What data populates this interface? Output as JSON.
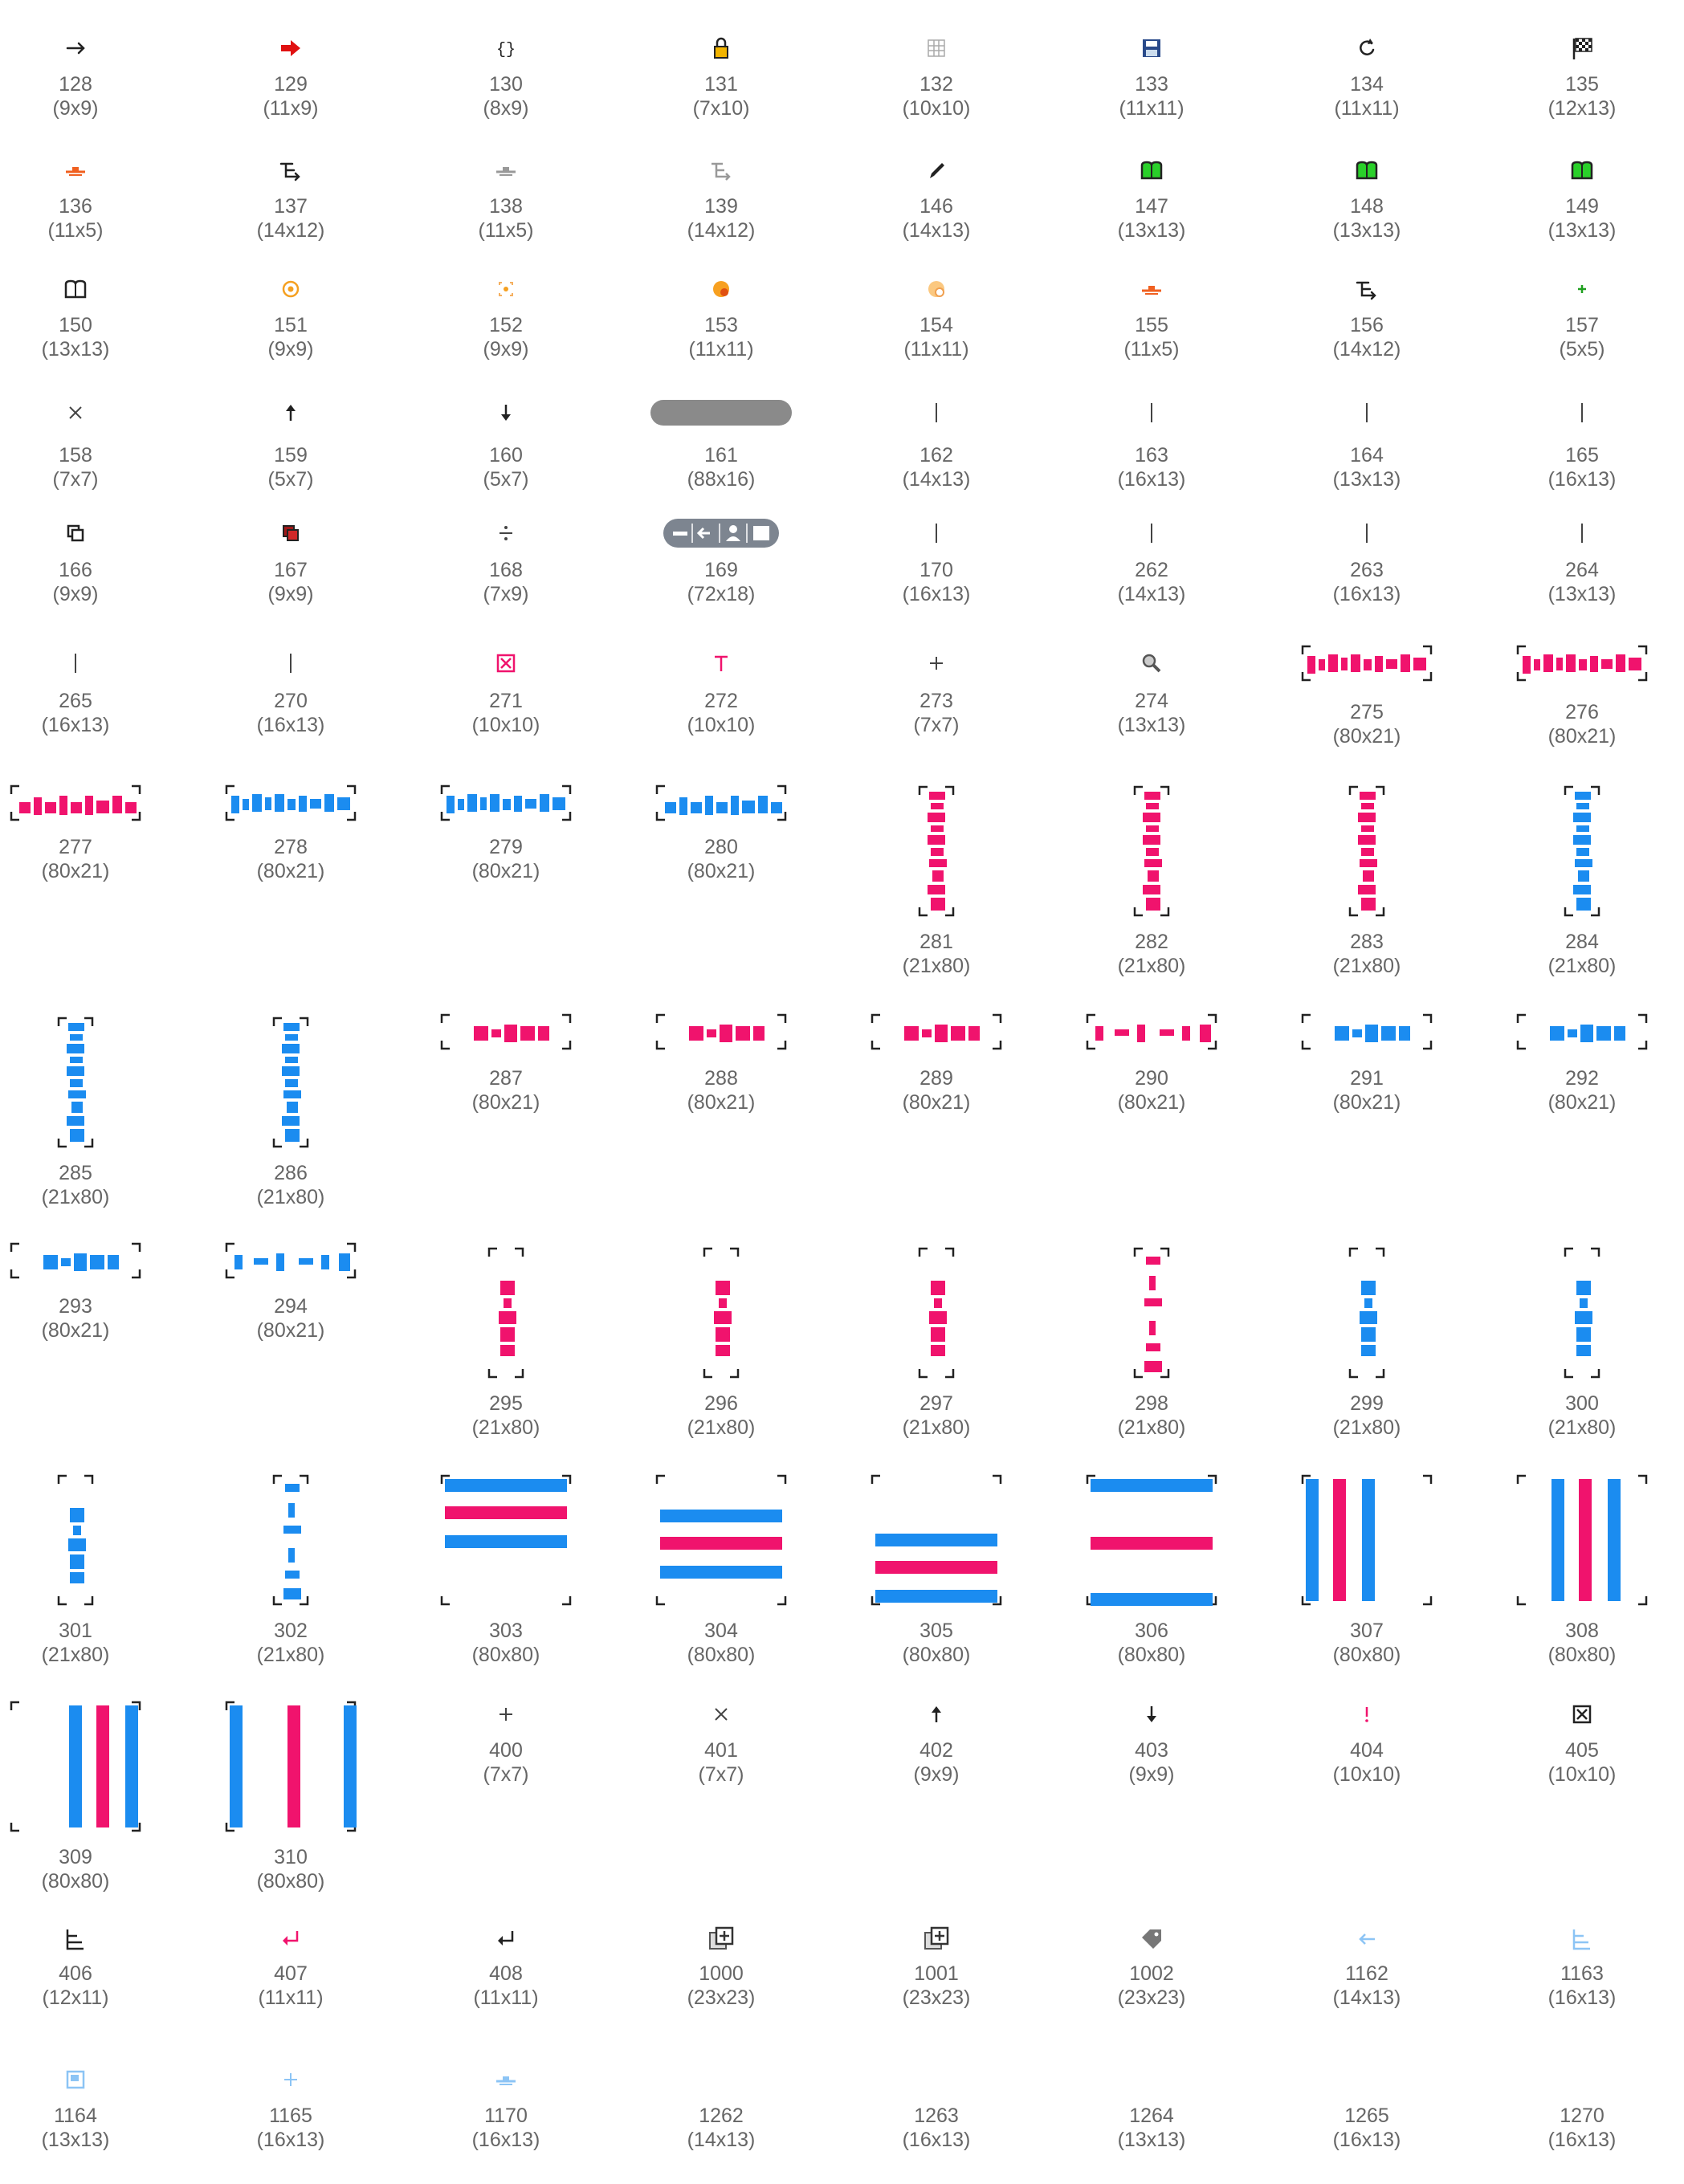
{
  "colors": {
    "pink": "#f0136d",
    "blue": "#1b8cf0",
    "label": "#666666",
    "dark": "#222222"
  },
  "cells": [
    {
      "id": "128",
      "size": "(9x9)",
      "icon": "arrow-right-icon"
    },
    {
      "id": "129",
      "size": "(11x9)",
      "icon": "red-arrow-right-icon"
    },
    {
      "id": "130",
      "size": "(8x9)",
      "icon": "braces-icon"
    },
    {
      "id": "131",
      "size": "(7x10)",
      "icon": "padlock-icon"
    },
    {
      "id": "132",
      "size": "(10x10)",
      "icon": "grid-icon"
    },
    {
      "id": "133",
      "size": "(11x11)",
      "icon": "floppy-disk-icon"
    },
    {
      "id": "134",
      "size": "(11x11)",
      "icon": "refresh-icon"
    },
    {
      "id": "135",
      "size": "(12x13)",
      "icon": "checkered-flag-icon"
    },
    {
      "id": "136",
      "size": "(11x5)",
      "icon": "orange-anchor-icon"
    },
    {
      "id": "137",
      "size": "(14x12)",
      "icon": "route-arrow-icon"
    },
    {
      "id": "138",
      "size": "(11x5)",
      "icon": "gray-anchor-icon"
    },
    {
      "id": "139",
      "size": "(14x12)",
      "icon": "gray-route-arrow-icon"
    },
    {
      "id": "146",
      "size": "(14x13)",
      "icon": "pencil-icon"
    },
    {
      "id": "147",
      "size": "(13x13)",
      "icon": "green-book-icon"
    },
    {
      "id": "148",
      "size": "(13x13)",
      "icon": "green-book-icon"
    },
    {
      "id": "149",
      "size": "(13x13)",
      "icon": "green-book-icon"
    },
    {
      "id": "150",
      "size": "(13x13)",
      "icon": "book-outline-icon"
    },
    {
      "id": "151",
      "size": "(9x9)",
      "icon": "orange-target-icon"
    },
    {
      "id": "152",
      "size": "(9x9)",
      "icon": "orange-focus-icon"
    },
    {
      "id": "153",
      "size": "(11x11)",
      "icon": "orange-badge-icon"
    },
    {
      "id": "154",
      "size": "(11x11)",
      "icon": "light-orange-badge-icon"
    },
    {
      "id": "155",
      "size": "(11x5)",
      "icon": "orange-anchor-icon"
    },
    {
      "id": "156",
      "size": "(14x12)",
      "icon": "route-arrow-icon"
    },
    {
      "id": "157",
      "size": "(5x5)",
      "icon": "green-plus-icon"
    },
    {
      "id": "158",
      "size": "(7x7)",
      "icon": "close-x-icon"
    },
    {
      "id": "159",
      "size": "(5x7)",
      "icon": "arrow-up-icon"
    },
    {
      "id": "160",
      "size": "(5x7)",
      "icon": "arrow-down-icon"
    },
    {
      "id": "161",
      "size": "(88x16)",
      "icon": "gray-pill-icon"
    },
    {
      "id": "162",
      "size": "(14x13)",
      "icon": "cursor-bar-icon"
    },
    {
      "id": "163",
      "size": "(16x13)",
      "icon": "cursor-bar-icon"
    },
    {
      "id": "164",
      "size": "(13x13)",
      "icon": "cursor-bar-icon"
    },
    {
      "id": "165",
      "size": "(16x13)",
      "icon": "cursor-bar-icon"
    },
    {
      "id": "166",
      "size": "(9x9)",
      "icon": "copy-squares-icon"
    },
    {
      "id": "167",
      "size": "(9x9)",
      "icon": "red-copy-squares-icon"
    },
    {
      "id": "168",
      "size": "(7x9)",
      "icon": "divide-icon"
    },
    {
      "id": "169",
      "size": "(72x18)",
      "icon": "toolbar-pill-icon"
    },
    {
      "id": "170",
      "size": "(16x13)",
      "icon": "cursor-bar-icon"
    },
    {
      "id": "262",
      "size": "(14x13)",
      "icon": "cursor-bar-icon"
    },
    {
      "id": "263",
      "size": "(16x13)",
      "icon": "cursor-bar-icon"
    },
    {
      "id": "264",
      "size": "(13x13)",
      "icon": "cursor-bar-icon"
    },
    {
      "id": "265",
      "size": "(16x13)",
      "icon": "cursor-bar-icon"
    },
    {
      "id": "270",
      "size": "(16x13)",
      "icon": "cursor-bar-icon"
    },
    {
      "id": "271",
      "size": "(10x10)",
      "icon": "pink-boxed-x-icon"
    },
    {
      "id": "272",
      "size": "(10x10)",
      "icon": "pink-text-t-icon"
    },
    {
      "id": "273",
      "size": "(7x7)",
      "icon": "plus-icon"
    },
    {
      "id": "274",
      "size": "(13x13)",
      "icon": "magnifier-icon"
    },
    {
      "id": "275",
      "size": "(80x21)",
      "icon": "pink-horizontal-distribution-icon"
    },
    {
      "id": "276",
      "size": "(80x21)",
      "icon": "pink-horizontal-distribution-icon"
    },
    {
      "id": "277",
      "size": "(80x21)",
      "icon": "pink-horizontal-distribution-icon"
    },
    {
      "id": "278",
      "size": "(80x21)",
      "icon": "blue-horizontal-distribution-icon"
    },
    {
      "id": "279",
      "size": "(80x21)",
      "icon": "blue-horizontal-distribution-icon"
    },
    {
      "id": "280",
      "size": "(80x21)",
      "icon": "blue-horizontal-distribution-icon"
    },
    {
      "id": "281",
      "size": "(21x80)",
      "icon": "pink-vertical-distribution-icon"
    },
    {
      "id": "282",
      "size": "(21x80)",
      "icon": "pink-vertical-distribution-icon"
    },
    {
      "id": "283",
      "size": "(21x80)",
      "icon": "pink-vertical-distribution-icon"
    },
    {
      "id": "284",
      "size": "(21x80)",
      "icon": "blue-vertical-distribution-icon"
    },
    {
      "id": "285",
      "size": "(21x80)",
      "icon": "blue-vertical-distribution-icon"
    },
    {
      "id": "286",
      "size": "(21x80)",
      "icon": "blue-vertical-distribution-icon"
    },
    {
      "id": "287",
      "size": "(80x21)",
      "icon": "pink-horizontal-distribution-icon"
    },
    {
      "id": "288",
      "size": "(80x21)",
      "icon": "pink-horizontal-distribution-icon"
    },
    {
      "id": "289",
      "size": "(80x21)",
      "icon": "pink-horizontal-distribution-icon"
    },
    {
      "id": "290",
      "size": "(80x21)",
      "icon": "pink-horizontal-distribution-icon"
    },
    {
      "id": "291",
      "size": "(80x21)",
      "icon": "blue-horizontal-distribution-icon"
    },
    {
      "id": "292",
      "size": "(80x21)",
      "icon": "blue-horizontal-distribution-icon"
    },
    {
      "id": "293",
      "size": "(80x21)",
      "icon": "blue-horizontal-distribution-icon"
    },
    {
      "id": "294",
      "size": "(80x21)",
      "icon": "blue-horizontal-distribution-icon"
    },
    {
      "id": "295",
      "size": "(21x80)",
      "icon": "pink-vertical-distribution-icon"
    },
    {
      "id": "296",
      "size": "(21x80)",
      "icon": "pink-vertical-distribution-icon"
    },
    {
      "id": "297",
      "size": "(21x80)",
      "icon": "pink-vertical-distribution-icon"
    },
    {
      "id": "298",
      "size": "(21x80)",
      "icon": "pink-vertical-distribution-icon"
    },
    {
      "id": "299",
      "size": "(21x80)",
      "icon": "blue-vertical-distribution-icon"
    },
    {
      "id": "300",
      "size": "(21x80)",
      "icon": "blue-vertical-distribution-icon"
    },
    {
      "id": "301",
      "size": "(21x80)",
      "icon": "blue-vertical-distribution-icon"
    },
    {
      "id": "302",
      "size": "(21x80)",
      "icon": "blue-vertical-distribution-icon"
    },
    {
      "id": "303",
      "size": "(80x80)",
      "icon": "horizontal-stripes-icon"
    },
    {
      "id": "304",
      "size": "(80x80)",
      "icon": "horizontal-stripes-icon"
    },
    {
      "id": "305",
      "size": "(80x80)",
      "icon": "horizontal-stripes-icon"
    },
    {
      "id": "306",
      "size": "(80x80)",
      "icon": "horizontal-stripes-icon"
    },
    {
      "id": "307",
      "size": "(80x80)",
      "icon": "vertical-stripes-icon"
    },
    {
      "id": "308",
      "size": "(80x80)",
      "icon": "vertical-stripes-icon"
    },
    {
      "id": "309",
      "size": "(80x80)",
      "icon": "vertical-stripes-icon"
    },
    {
      "id": "310",
      "size": "(80x80)",
      "icon": "vertical-stripes-icon"
    },
    {
      "id": "400",
      "size": "(7x7)",
      "icon": "plus-icon"
    },
    {
      "id": "401",
      "size": "(7x7)",
      "icon": "close-x-icon"
    },
    {
      "id": "402",
      "size": "(9x9)",
      "icon": "arrow-up-icon"
    },
    {
      "id": "403",
      "size": "(9x9)",
      "icon": "arrow-down-icon"
    },
    {
      "id": "404",
      "size": "(10x10)",
      "icon": "pink-exclamation-icon"
    },
    {
      "id": "405",
      "size": "(10x10)",
      "icon": "boxed-x-icon"
    },
    {
      "id": "406",
      "size": "(12x11)",
      "icon": "align-left-icon"
    },
    {
      "id": "407",
      "size": "(11x11)",
      "icon": "pink-return-arrow-icon"
    },
    {
      "id": "408",
      "size": "(11x11)",
      "icon": "return-arrow-icon"
    },
    {
      "id": "1000",
      "size": "(23x23)",
      "icon": "add-layer-icon"
    },
    {
      "id": "1001",
      "size": "(23x23)",
      "icon": "add-layer-icon"
    },
    {
      "id": "1002",
      "size": "(23x23)",
      "icon": "tag-icon"
    },
    {
      "id": "1162",
      "size": "(14x13)",
      "icon": "light-blue-arrow-left-icon"
    },
    {
      "id": "1163",
      "size": "(16x13)",
      "icon": "light-blue-align-left-icon"
    },
    {
      "id": "1164",
      "size": "(13x13)",
      "icon": "light-blue-image-icon"
    },
    {
      "id": "1165",
      "size": "(16x13)",
      "icon": "light-blue-plus-icon"
    },
    {
      "id": "1170",
      "size": "(16x13)",
      "icon": "light-blue-anchor-icon"
    },
    {
      "id": "1262",
      "size": "(14x13)",
      "icon": "blank-icon"
    },
    {
      "id": "1263",
      "size": "(16x13)",
      "icon": "blank-icon"
    },
    {
      "id": "1264",
      "size": "(13x13)",
      "icon": "blank-icon"
    },
    {
      "id": "1265",
      "size": "(16x13)",
      "icon": "blank-icon"
    },
    {
      "id": "1270",
      "size": "(16x13)",
      "icon": "blank-icon"
    }
  ]
}
